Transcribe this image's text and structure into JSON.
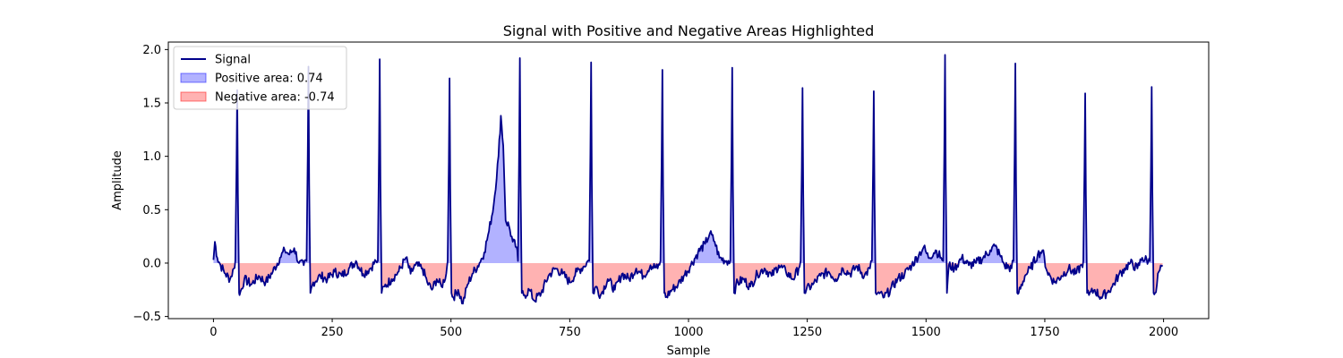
{
  "chart_data": {
    "type": "line",
    "title": "Signal with Positive and Negative Areas Highlighted",
    "xlabel": "Sample",
    "ylabel": "Amplitude",
    "xlim": [
      -95,
      2095
    ],
    "ylim": [
      -0.52,
      2.07
    ],
    "xticks": [
      0,
      250,
      500,
      750,
      1000,
      1250,
      1500,
      1750,
      2000
    ],
    "yticks": [
      -0.5,
      0.0,
      0.5,
      1.0,
      1.5,
      2.0
    ],
    "xtick_labels": [
      "0",
      "250",
      "500",
      "750",
      "1000",
      "1250",
      "1500",
      "1750",
      "2000"
    ],
    "ytick_labels": [
      "−0.5",
      "0.0",
      "0.5",
      "1.0",
      "1.5",
      "2.0"
    ],
    "legend_position": "top-left",
    "legend": [
      {
        "label": "Signal",
        "kind": "line",
        "color": "#00008b"
      },
      {
        "label": "Positive area: 0.74",
        "kind": "patch",
        "color": "#0000ff",
        "alpha": 0.3
      },
      {
        "label": "Negative area: -0.74",
        "kind": "patch",
        "color": "#ff0000",
        "alpha": 0.3
      }
    ],
    "beat_peaks": [
      {
        "x": 50,
        "y": 1.62
      },
      {
        "x": 200,
        "y": 1.84
      },
      {
        "x": 350,
        "y": 1.91
      },
      {
        "x": 497,
        "y": 1.73
      },
      {
        "x": 645,
        "y": 1.92
      },
      {
        "x": 795,
        "y": 1.88
      },
      {
        "x": 945,
        "y": 1.81
      },
      {
        "x": 1092,
        "y": 1.83
      },
      {
        "x": 1240,
        "y": 1.64
      },
      {
        "x": 1390,
        "y": 1.61
      },
      {
        "x": 1540,
        "y": 1.95
      },
      {
        "x": 1688,
        "y": 1.87
      },
      {
        "x": 1835,
        "y": 1.59
      },
      {
        "x": 1975,
        "y": 1.65
      }
    ],
    "baseline_points": [
      [
        0,
        0.03
      ],
      [
        3,
        0.2
      ],
      [
        8,
        0.05
      ],
      [
        15,
        -0.02
      ],
      [
        25,
        -0.1
      ],
      [
        35,
        -0.15
      ],
      [
        43,
        -0.05
      ],
      [
        55,
        -0.3
      ],
      [
        65,
        -0.15
      ],
      [
        80,
        -0.2
      ],
      [
        95,
        -0.12
      ],
      [
        110,
        -0.18
      ],
      [
        125,
        -0.08
      ],
      [
        140,
        0.05
      ],
      [
        150,
        0.12
      ],
      [
        160,
        0.08
      ],
      [
        170,
        0.14
      ],
      [
        180,
        0.0
      ],
      [
        190,
        -0.02
      ],
      [
        210,
        -0.18
      ],
      [
        225,
        -0.12
      ],
      [
        240,
        -0.15
      ],
      [
        255,
        -0.08
      ],
      [
        270,
        -0.12
      ],
      [
        285,
        -0.05
      ],
      [
        300,
        0.02
      ],
      [
        315,
        -0.1
      ],
      [
        330,
        -0.05
      ],
      [
        342,
        0.02
      ],
      [
        360,
        -0.22
      ],
      [
        375,
        -0.15
      ],
      [
        390,
        -0.08
      ],
      [
        405,
        0.05
      ],
      [
        415,
        -0.1
      ],
      [
        425,
        -0.02
      ],
      [
        440,
        -0.05
      ],
      [
        450,
        -0.18
      ],
      [
        460,
        -0.25
      ],
      [
        470,
        -0.15
      ],
      [
        480,
        -0.22
      ],
      [
        490,
        -0.1
      ],
      [
        505,
        -0.32
      ],
      [
        515,
        -0.25
      ],
      [
        525,
        -0.38
      ],
      [
        535,
        -0.2
      ],
      [
        545,
        -0.1
      ],
      [
        560,
        0.0
      ],
      [
        570,
        0.1
      ],
      [
        580,
        0.3
      ],
      [
        590,
        0.55
      ],
      [
        600,
        1.0
      ],
      [
        605,
        1.38
      ],
      [
        610,
        1.1
      ],
      [
        615,
        0.4
      ],
      [
        622,
        0.35
      ],
      [
        630,
        0.2
      ],
      [
        638,
        0.15
      ],
      [
        655,
        -0.3
      ],
      [
        665,
        -0.25
      ],
      [
        675,
        -0.35
      ],
      [
        690,
        -0.28
      ],
      [
        705,
        -0.12
      ],
      [
        720,
        -0.05
      ],
      [
        735,
        -0.1
      ],
      [
        750,
        -0.18
      ],
      [
        765,
        -0.08
      ],
      [
        780,
        -0.03
      ],
      [
        788,
        0.02
      ],
      [
        805,
        -0.22
      ],
      [
        815,
        -0.3
      ],
      [
        830,
        -0.15
      ],
      [
        845,
        -0.25
      ],
      [
        860,
        -0.1
      ],
      [
        875,
        -0.15
      ],
      [
        890,
        -0.05
      ],
      [
        905,
        -0.12
      ],
      [
        920,
        -0.02
      ],
      [
        935,
        -0.05
      ],
      [
        952,
        -0.32
      ],
      [
        965,
        -0.25
      ],
      [
        978,
        -0.2
      ],
      [
        990,
        -0.12
      ],
      [
        1005,
        -0.02
      ],
      [
        1020,
        0.1
      ],
      [
        1035,
        0.18
      ],
      [
        1045,
        0.28
      ],
      [
        1055,
        0.2
      ],
      [
        1065,
        0.05
      ],
      [
        1080,
        0.02
      ],
      [
        1100,
        -0.2
      ],
      [
        1115,
        -0.15
      ],
      [
        1130,
        -0.22
      ],
      [
        1145,
        -0.1
      ],
      [
        1160,
        -0.05
      ],
      [
        1175,
        -0.12
      ],
      [
        1190,
        -0.02
      ],
      [
        1205,
        -0.08
      ],
      [
        1220,
        -0.15
      ],
      [
        1232,
        -0.05
      ],
      [
        1248,
        -0.25
      ],
      [
        1262,
        -0.2
      ],
      [
        1278,
        -0.12
      ],
      [
        1295,
        -0.08
      ],
      [
        1310,
        -0.15
      ],
      [
        1325,
        -0.05
      ],
      [
        1340,
        -0.1
      ],
      [
        1355,
        -0.03
      ],
      [
        1370,
        -0.12
      ],
      [
        1382,
        -0.05
      ],
      [
        1398,
        -0.28
      ],
      [
        1412,
        -0.32
      ],
      [
        1425,
        -0.25
      ],
      [
        1440,
        -0.15
      ],
      [
        1455,
        -0.1
      ],
      [
        1470,
        -0.02
      ],
      [
        1485,
        0.08
      ],
      [
        1495,
        0.15
      ],
      [
        1505,
        0.05
      ],
      [
        1520,
        0.12
      ],
      [
        1532,
        0.05
      ],
      [
        1548,
        -0.02
      ],
      [
        1560,
        -0.05
      ],
      [
        1575,
        0.05
      ],
      [
        1590,
        -0.02
      ],
      [
        1605,
        0.0
      ],
      [
        1620,
        0.05
      ],
      [
        1635,
        0.12
      ],
      [
        1645,
        0.16
      ],
      [
        1655,
        0.08
      ],
      [
        1665,
        -0.02
      ],
      [
        1680,
        -0.05
      ],
      [
        1695,
        -0.28
      ],
      [
        1708,
        -0.12
      ],
      [
        1720,
        -0.05
      ],
      [
        1735,
        0.08
      ],
      [
        1745,
        0.12
      ],
      [
        1755,
        -0.08
      ],
      [
        1770,
        -0.18
      ],
      [
        1785,
        -0.12
      ],
      [
        1800,
        -0.05
      ],
      [
        1815,
        -0.1
      ],
      [
        1828,
        -0.02
      ],
      [
        1843,
        -0.3
      ],
      [
        1855,
        -0.25
      ],
      [
        1868,
        -0.32
      ],
      [
        1880,
        -0.28
      ],
      [
        1892,
        -0.22
      ],
      [
        1905,
        -0.12
      ],
      [
        1918,
        -0.05
      ],
      [
        1930,
        0.0
      ],
      [
        1945,
        -0.05
      ],
      [
        1955,
        0.05
      ],
      [
        1968,
        0.02
      ],
      [
        1982,
        -0.28
      ],
      [
        1990,
        -0.08
      ],
      [
        1998,
        -0.02
      ]
    ],
    "colors": {
      "line": "#00008b",
      "positive_fill": "#0000ff",
      "negative_fill": "#ff0000",
      "fill_alpha": 0.3
    }
  }
}
